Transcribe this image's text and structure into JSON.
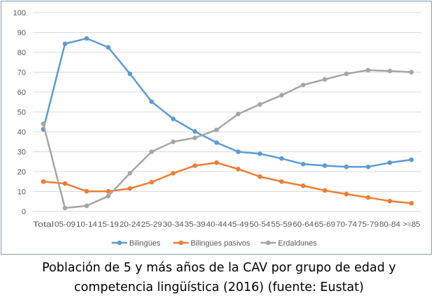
{
  "chart_data": {
    "type": "line",
    "title": "",
    "xlabel": "",
    "ylabel": "",
    "ylim": [
      0,
      100
    ],
    "yticks": [
      "0",
      "10",
      "20",
      "30",
      "40",
      "50",
      "60",
      "70",
      "80",
      "90",
      "100"
    ],
    "grid": true,
    "legend_placement": "bottom",
    "categories": [
      "Total",
      "05-09",
      "10-14",
      "15-19",
      "20-24",
      "25-29",
      "30-34",
      "35-39",
      "40-44",
      "45-49",
      "50-54",
      "55-59",
      "60-64",
      "65-69",
      "70-74",
      "75-79",
      "80-84",
      ">=85"
    ],
    "series": [
      {
        "name": "Bilingües",
        "color": "#5b9bd5",
        "values": [
          41.3,
          84.3,
          87.0,
          82.5,
          69.2,
          55.2,
          46.5,
          40.2,
          34.6,
          30.0,
          29.0,
          26.6,
          23.8,
          23.0,
          22.4,
          22.4,
          24.5,
          26.0
        ]
      },
      {
        "name": "Bilingües pasivos",
        "color": "#ed7d31",
        "values": [
          15.0,
          14.0,
          10.1,
          10.1,
          11.5,
          14.7,
          19.2,
          23.0,
          24.5,
          21.3,
          17.5,
          15.0,
          12.9,
          10.5,
          8.7,
          7.0,
          5.2,
          4.1
        ]
      },
      {
        "name": "Erdaldunes",
        "color": "#a5a5a5",
        "values": [
          44.0,
          1.7,
          2.8,
          7.7,
          19.2,
          30.0,
          35.0,
          37.0,
          41.0,
          49.0,
          53.8,
          58.4,
          63.6,
          66.4,
          69.2,
          71.0,
          70.6,
          70.0
        ]
      }
    ]
  },
  "caption": {
    "line1": "Población de 5 y más años de la CAV por grupo de edad y",
    "line2": "competencia lingüística (2016) (fuente: Eustat)"
  }
}
